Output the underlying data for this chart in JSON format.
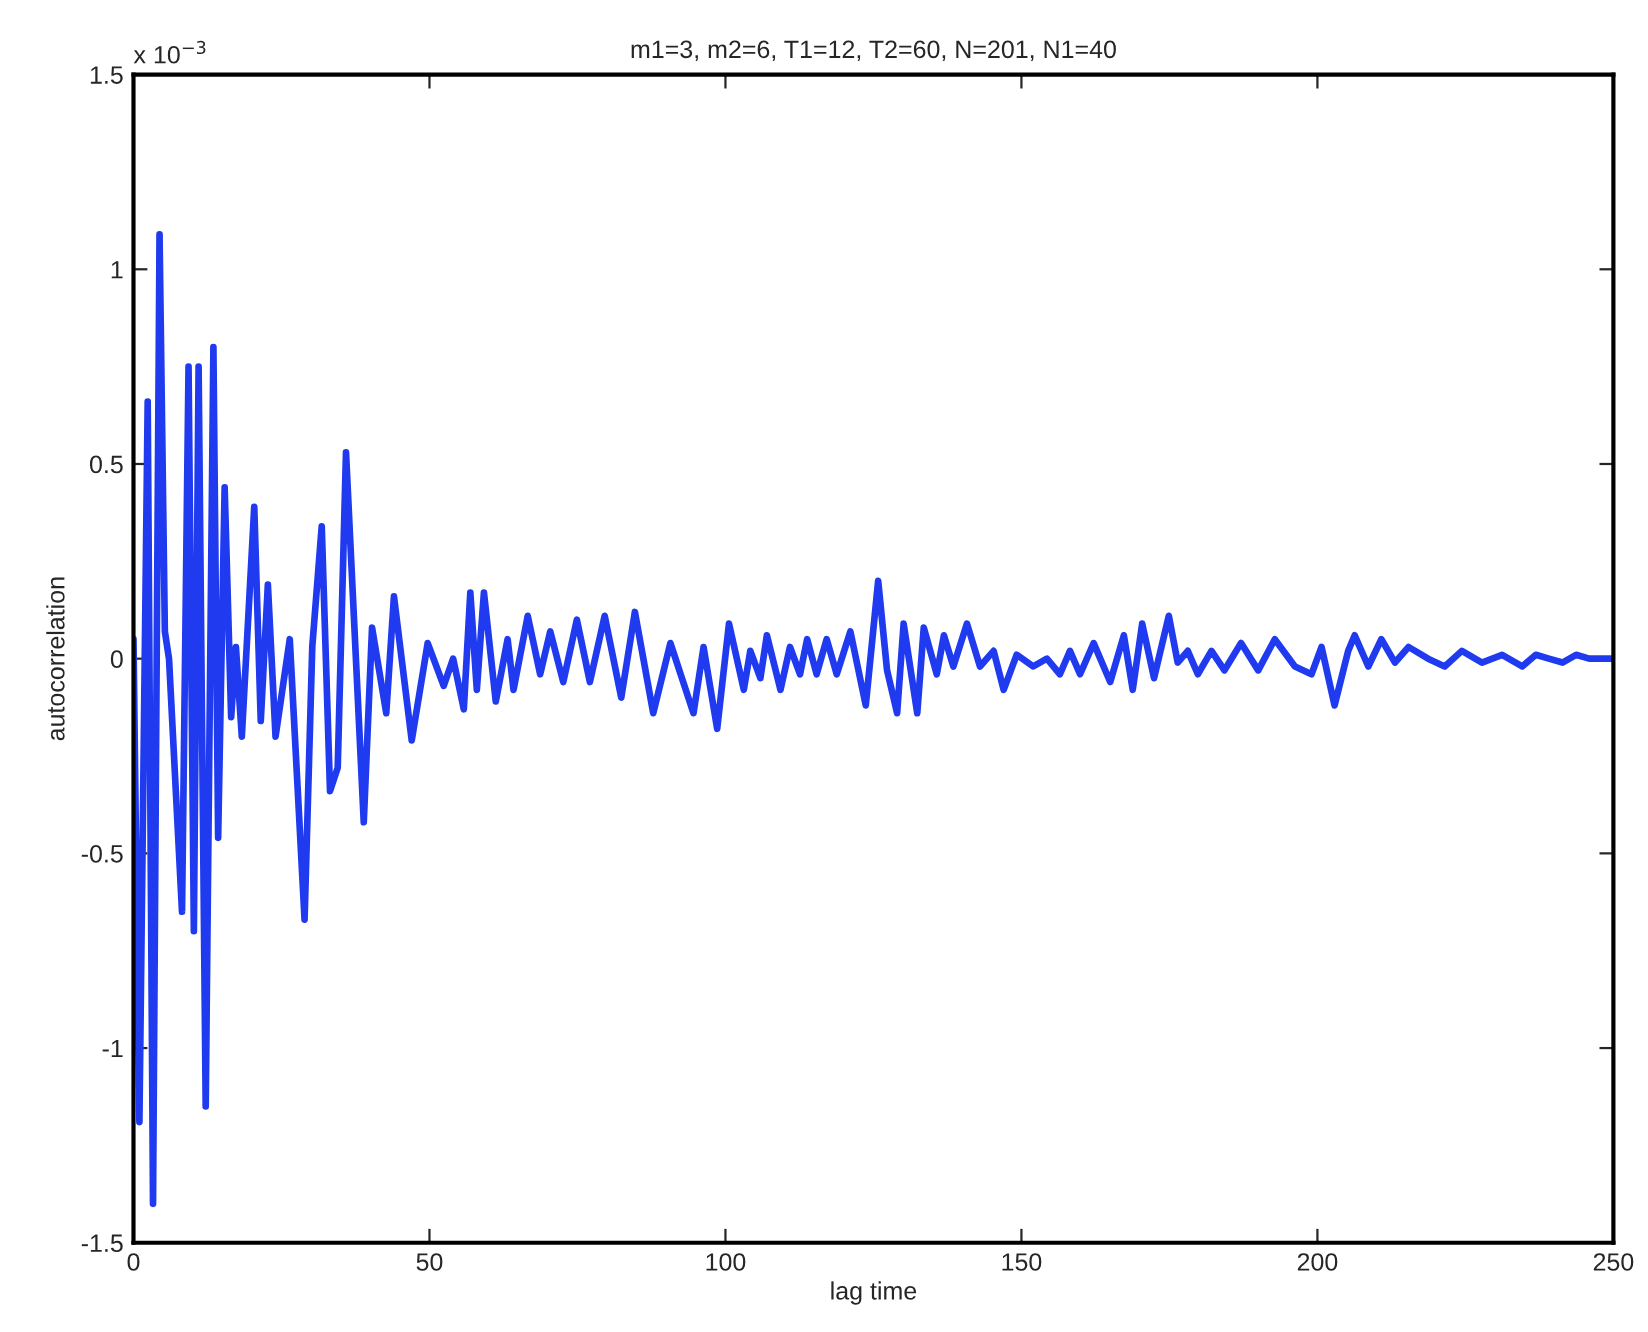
{
  "chart_data": {
    "type": "line",
    "title": "m1=3, m2=6, T1=12, T2=60, N=201, N1=40",
    "xlabel": "lag time",
    "ylabel": "autocorrelation",
    "annotations": [
      "x 10$^{−3}$"
    ],
    "series": [
      {
        "color": "#1f3aef",
        "x": [
          0,
          1,
          2.4,
          3.3,
          4.4,
          5.3,
          6,
          8.2,
          9.3,
          10.2,
          11,
          12.2,
          13.5,
          14.3,
          15.4,
          16.5,
          17.3,
          18.3,
          20.4,
          21.5,
          22.7,
          24,
          26.4,
          28.9,
          30.2,
          31.8,
          33.2,
          34.5,
          35.9,
          38.9,
          40.3,
          42.7,
          44,
          47,
          49.7,
          52.4,
          54,
          55.8,
          56.9,
          58,
          59.2,
          61.2,
          63.2,
          64.2,
          66.6,
          68.7,
          70.4,
          72.6,
          74.9,
          77.1,
          79.6,
          82.4,
          84.7,
          87.8,
          90.7,
          94.6,
          96.3,
          98.6,
          100.6,
          103.1,
          104.2,
          105.9,
          107,
          109.3,
          110.9,
          112.6,
          113.8,
          115.4,
          117.1,
          118.8,
          121.1,
          123.7,
          125.8,
          127.3,
          129,
          130.1,
          132.4,
          133.5,
          135.7,
          136.9,
          138.5,
          140.8,
          143,
          145.3,
          147,
          149.2,
          152,
          154.3,
          156.5,
          158.2,
          159.9,
          162.2,
          165,
          167.3,
          168.8,
          170.4,
          172.4,
          174.9,
          176.4,
          178.1,
          179.8,
          182.1,
          184.3,
          187.1,
          190,
          192.8,
          196.2,
          199,
          200.7,
          202.9,
          205.2,
          206.3,
          208.6,
          210.8,
          213.1,
          215.4,
          218.7,
          221.5,
          224.4,
          227.8,
          231.2,
          234.6,
          236.9,
          239.1,
          241.4,
          243.7,
          245.9,
          250
        ],
        "values": [
          0.05,
          -1.19,
          0.66,
          -1.4,
          1.09,
          0.07,
          0.0,
          -0.65,
          0.75,
          -0.7,
          0.75,
          -1.15,
          0.8,
          -0.46,
          0.44,
          -0.15,
          0.03,
          -0.2,
          0.39,
          -0.16,
          0.19,
          -0.2,
          0.05,
          -0.67,
          0.03,
          0.34,
          -0.34,
          -0.28,
          0.53,
          -0.42,
          0.08,
          -0.14,
          0.16,
          -0.21,
          0.04,
          -0.07,
          0.0,
          -0.13,
          0.17,
          -0.08,
          0.17,
          -0.11,
          0.05,
          -0.08,
          0.11,
          -0.04,
          0.07,
          -0.06,
          0.1,
          -0.06,
          0.11,
          -0.1,
          0.12,
          -0.14,
          0.04,
          -0.14,
          0.03,
          -0.18,
          0.09,
          -0.08,
          0.02,
          -0.05,
          0.06,
          -0.08,
          0.03,
          -0.04,
          0.05,
          -0.04,
          0.05,
          -0.04,
          0.07,
          -0.12,
          0.2,
          -0.03,
          -0.14,
          0.09,
          -0.14,
          0.08,
          -0.04,
          0.06,
          -0.02,
          0.09,
          -0.02,
          0.02,
          -0.08,
          0.01,
          -0.02,
          0.0,
          -0.04,
          0.02,
          -0.04,
          0.04,
          -0.06,
          0.06,
          -0.08,
          0.09,
          -0.05,
          0.11,
          -0.01,
          0.02,
          -0.04,
          0.02,
          -0.03,
          0.04,
          -0.03,
          0.05,
          -0.02,
          -0.04,
          0.03,
          -0.12,
          0.02,
          0.06,
          -0.02,
          0.05,
          -0.01,
          0.03,
          0.0,
          -0.02,
          0.02,
          -0.01,
          0.01,
          -0.02,
          0.01,
          0.0,
          -0.01,
          0.01,
          0.0,
          0.0
        ]
      }
    ],
    "xlim": [
      0,
      250
    ],
    "xticks": [
      0,
      50,
      100,
      150,
      200,
      250
    ],
    "ylim": [
      -1.5,
      1.5
    ],
    "yticks": [
      -1.5,
      -1,
      -0.5,
      0,
      0.5,
      1,
      1.5
    ],
    "grid": false,
    "legend": false,
    "marker": "none",
    "line_style": "solid"
  }
}
